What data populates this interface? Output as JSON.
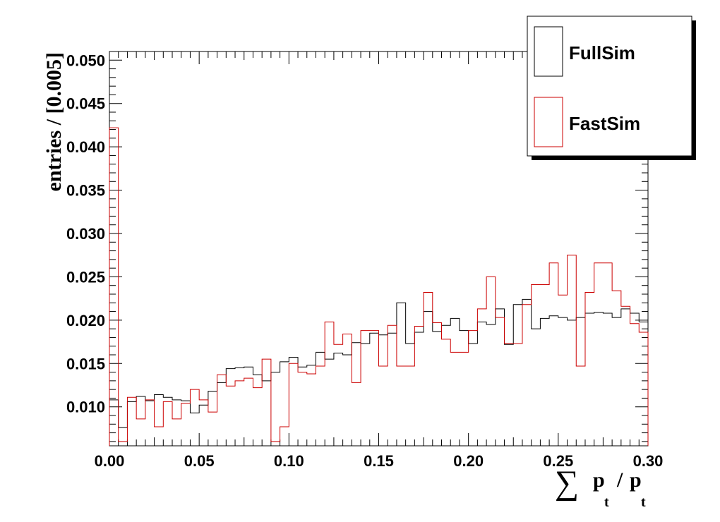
{
  "chart_data": {
    "type": "step-histogram",
    "title": "",
    "xlabel": {
      "sum": "∑",
      "p1": "p",
      "p1_sub": "t",
      "slash": " / ",
      "p2": "p",
      "p2_sub": "t"
    },
    "ylabel": "entries / [0.005]",
    "xlim": [
      0.0,
      0.3
    ],
    "ylim": [
      0.0055,
      0.051
    ],
    "bin_width": 0.005,
    "bin_start": 0.0,
    "x_ticks": [
      0.0,
      0.05,
      0.1,
      0.15,
      0.2,
      0.25,
      0.3
    ],
    "x_tick_labels": [
      "0.00",
      "0.05",
      "0.10",
      "0.15",
      "0.20",
      "0.25",
      "0.30"
    ],
    "y_ticks": [
      0.01,
      0.015,
      0.02,
      0.025,
      0.03,
      0.035,
      0.04,
      0.045,
      0.05
    ],
    "y_tick_labels": [
      "0.010",
      "0.015",
      "0.020",
      "0.025",
      "0.030",
      "0.035",
      "0.040",
      "0.045",
      "0.050"
    ],
    "legend_position": "top-right",
    "series": [
      {
        "name": "FullSim",
        "color": "#000000",
        "values": [
          0.0108,
          0.0076,
          0.0106,
          0.0112,
          0.0107,
          0.0114,
          0.0111,
          0.0108,
          0.0107,
          0.0093,
          0.0102,
          0.0118,
          0.0128,
          0.0144,
          0.0145,
          0.0146,
          0.0137,
          0.013,
          0.014,
          0.0152,
          0.0157,
          0.0146,
          0.0148,
          0.0163,
          0.0155,
          0.0162,
          0.016,
          0.0174,
          0.0173,
          0.0185,
          0.0183,
          0.0185,
          0.022,
          0.0173,
          0.0186,
          0.021,
          0.0187,
          0.0194,
          0.0202,
          0.0188,
          0.0173,
          0.0198,
          0.0195,
          0.0213,
          0.0172,
          0.0218,
          0.0224,
          0.019,
          0.0202,
          0.0205,
          0.0203,
          0.02,
          0.0203,
          0.0208,
          0.0209,
          0.0208,
          0.0203,
          0.0213,
          0.0208,
          0.0198
        ]
      },
      {
        "name": "FastSim",
        "color": "#cc0000",
        "values": [
          0.0422,
          0.006,
          0.0111,
          0.0086,
          0.0108,
          0.0077,
          0.0106,
          0.0086,
          0.0104,
          0.012,
          0.0108,
          0.0094,
          0.0137,
          0.0124,
          0.013,
          0.0133,
          0.0122,
          0.0155,
          0.006,
          0.0077,
          0.015,
          0.014,
          0.0138,
          0.0147,
          0.0198,
          0.0172,
          0.0184,
          0.0128,
          0.0188,
          0.0188,
          0.0147,
          0.0194,
          0.0147,
          0.0147,
          0.0193,
          0.0232,
          0.0197,
          0.0178,
          0.0163,
          0.0163,
          0.0188,
          0.0213,
          0.025,
          0.0203,
          0.0173,
          0.0173,
          0.0218,
          0.0241,
          0.0241,
          0.0266,
          0.0229,
          0.0275,
          0.0147,
          0.0232,
          0.0266,
          0.0266,
          0.0234,
          0.0216,
          0.0196,
          0.0186
        ]
      }
    ]
  }
}
